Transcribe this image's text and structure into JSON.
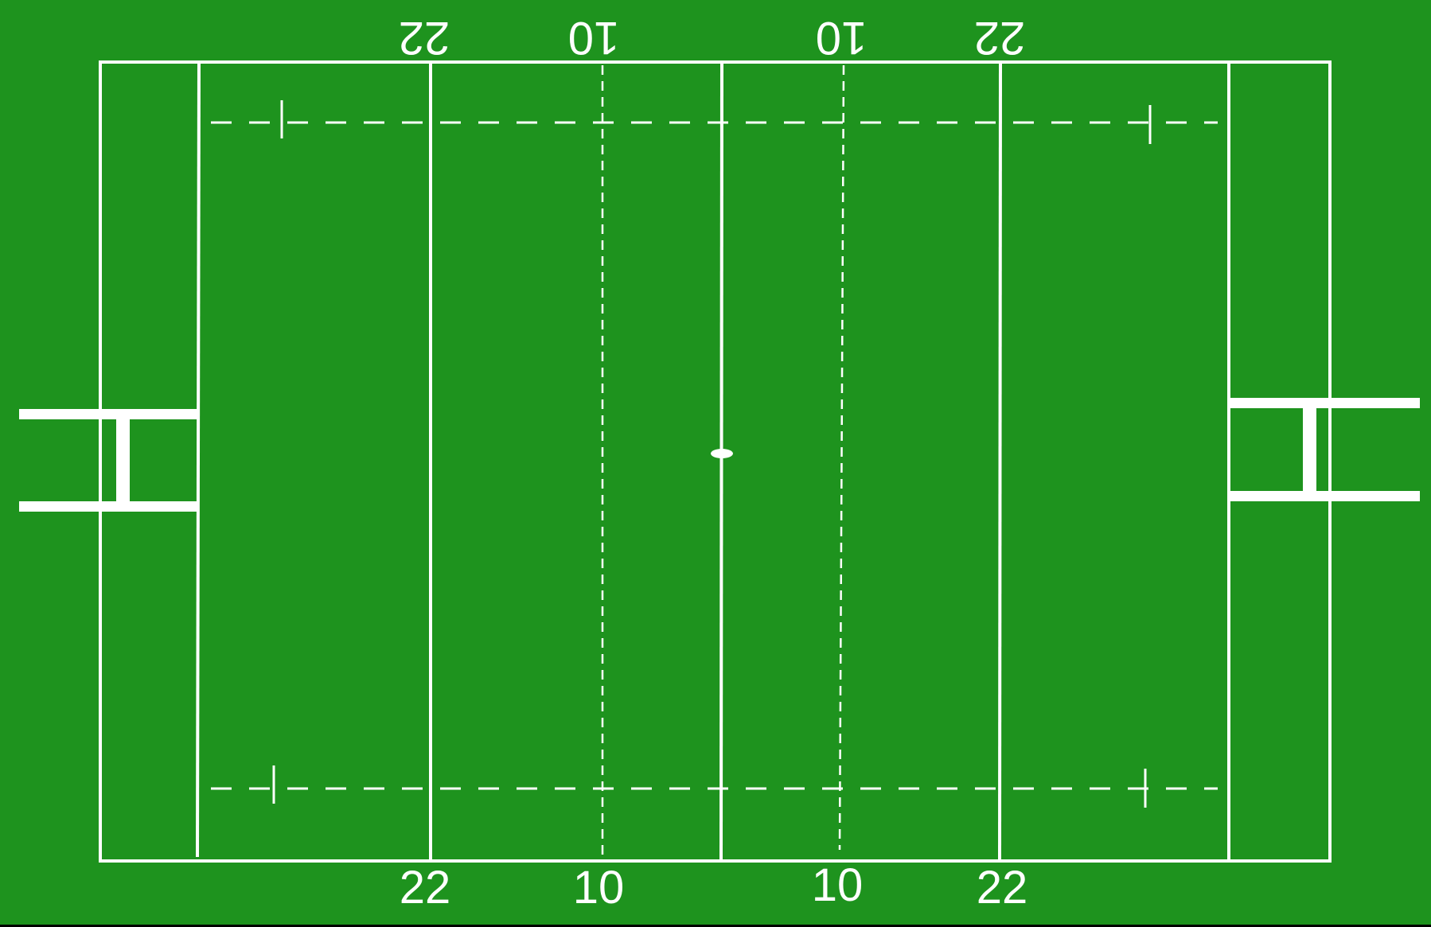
{
  "colors": {
    "grass": "#1e931e",
    "lines": "#ffffff"
  },
  "labels": {
    "bottom": [
      "22",
      "10",
      "10",
      "22"
    ],
    "top": [
      "22",
      "10",
      "10",
      "22"
    ]
  },
  "icons": {
    "left_goal": "goal-posts-icon",
    "right_goal": "goal-posts-icon",
    "centre_spot": "centre-spot-icon"
  }
}
